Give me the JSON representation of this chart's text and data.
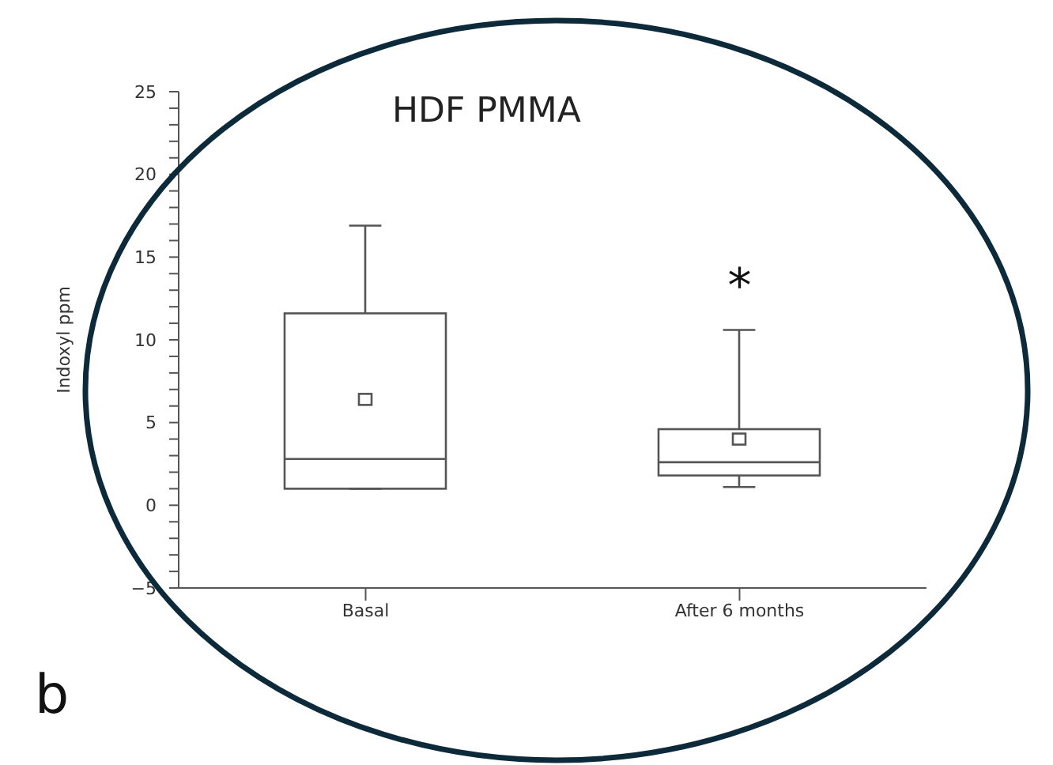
{
  "chart_data": {
    "type": "box",
    "title": "HDF PMMA",
    "ylabel": "Indoxyl ppm",
    "categories": [
      "Basal",
      "After 6 months"
    ],
    "boxes": [
      {
        "low": 1.0,
        "q1": 1.0,
        "median": 2.8,
        "q3": 11.6,
        "high": 16.9,
        "mean": 6.4
      },
      {
        "low": 1.1,
        "q1": 1.8,
        "median": 2.6,
        "q3": 4.6,
        "high": 10.6,
        "mean": 4.0
      }
    ],
    "color": "#555555",
    "ylim": [
      -5,
      25
    ],
    "yticks": [
      -5,
      {
        "value": -4,
        "label": null
      },
      {
        "value": -3,
        "label": null
      },
      {
        "value": -2,
        "label": null
      },
      {
        "value": -1,
        "label": null
      },
      0,
      {
        "value": 1,
        "label": null
      },
      {
        "value": 2,
        "label": null
      },
      {
        "value": 3,
        "label": null
      },
      {
        "value": 4,
        "label": null
      },
      5,
      {
        "value": 6,
        "label": null
      },
      {
        "value": 7,
        "label": null
      },
      {
        "value": 8,
        "label": null
      },
      {
        "value": 9,
        "label": null
      },
      10,
      {
        "value": 11,
        "label": null
      },
      {
        "value": 12,
        "label": null
      },
      {
        "value": 13,
        "label": null
      },
      {
        "value": 14,
        "label": null
      },
      15,
      {
        "value": 16,
        "label": null
      },
      {
        "value": 17,
        "label": null
      },
      {
        "value": 18,
        "label": null
      },
      {
        "value": 19,
        "label": null
      },
      20,
      {
        "value": 21,
        "label": null
      },
      {
        "value": 22,
        "label": null
      },
      {
        "value": 23,
        "label": null
      },
      {
        "value": 24,
        "label": null
      },
      25
    ],
    "grid": false,
    "annotations": [
      "*",
      "b"
    ]
  }
}
